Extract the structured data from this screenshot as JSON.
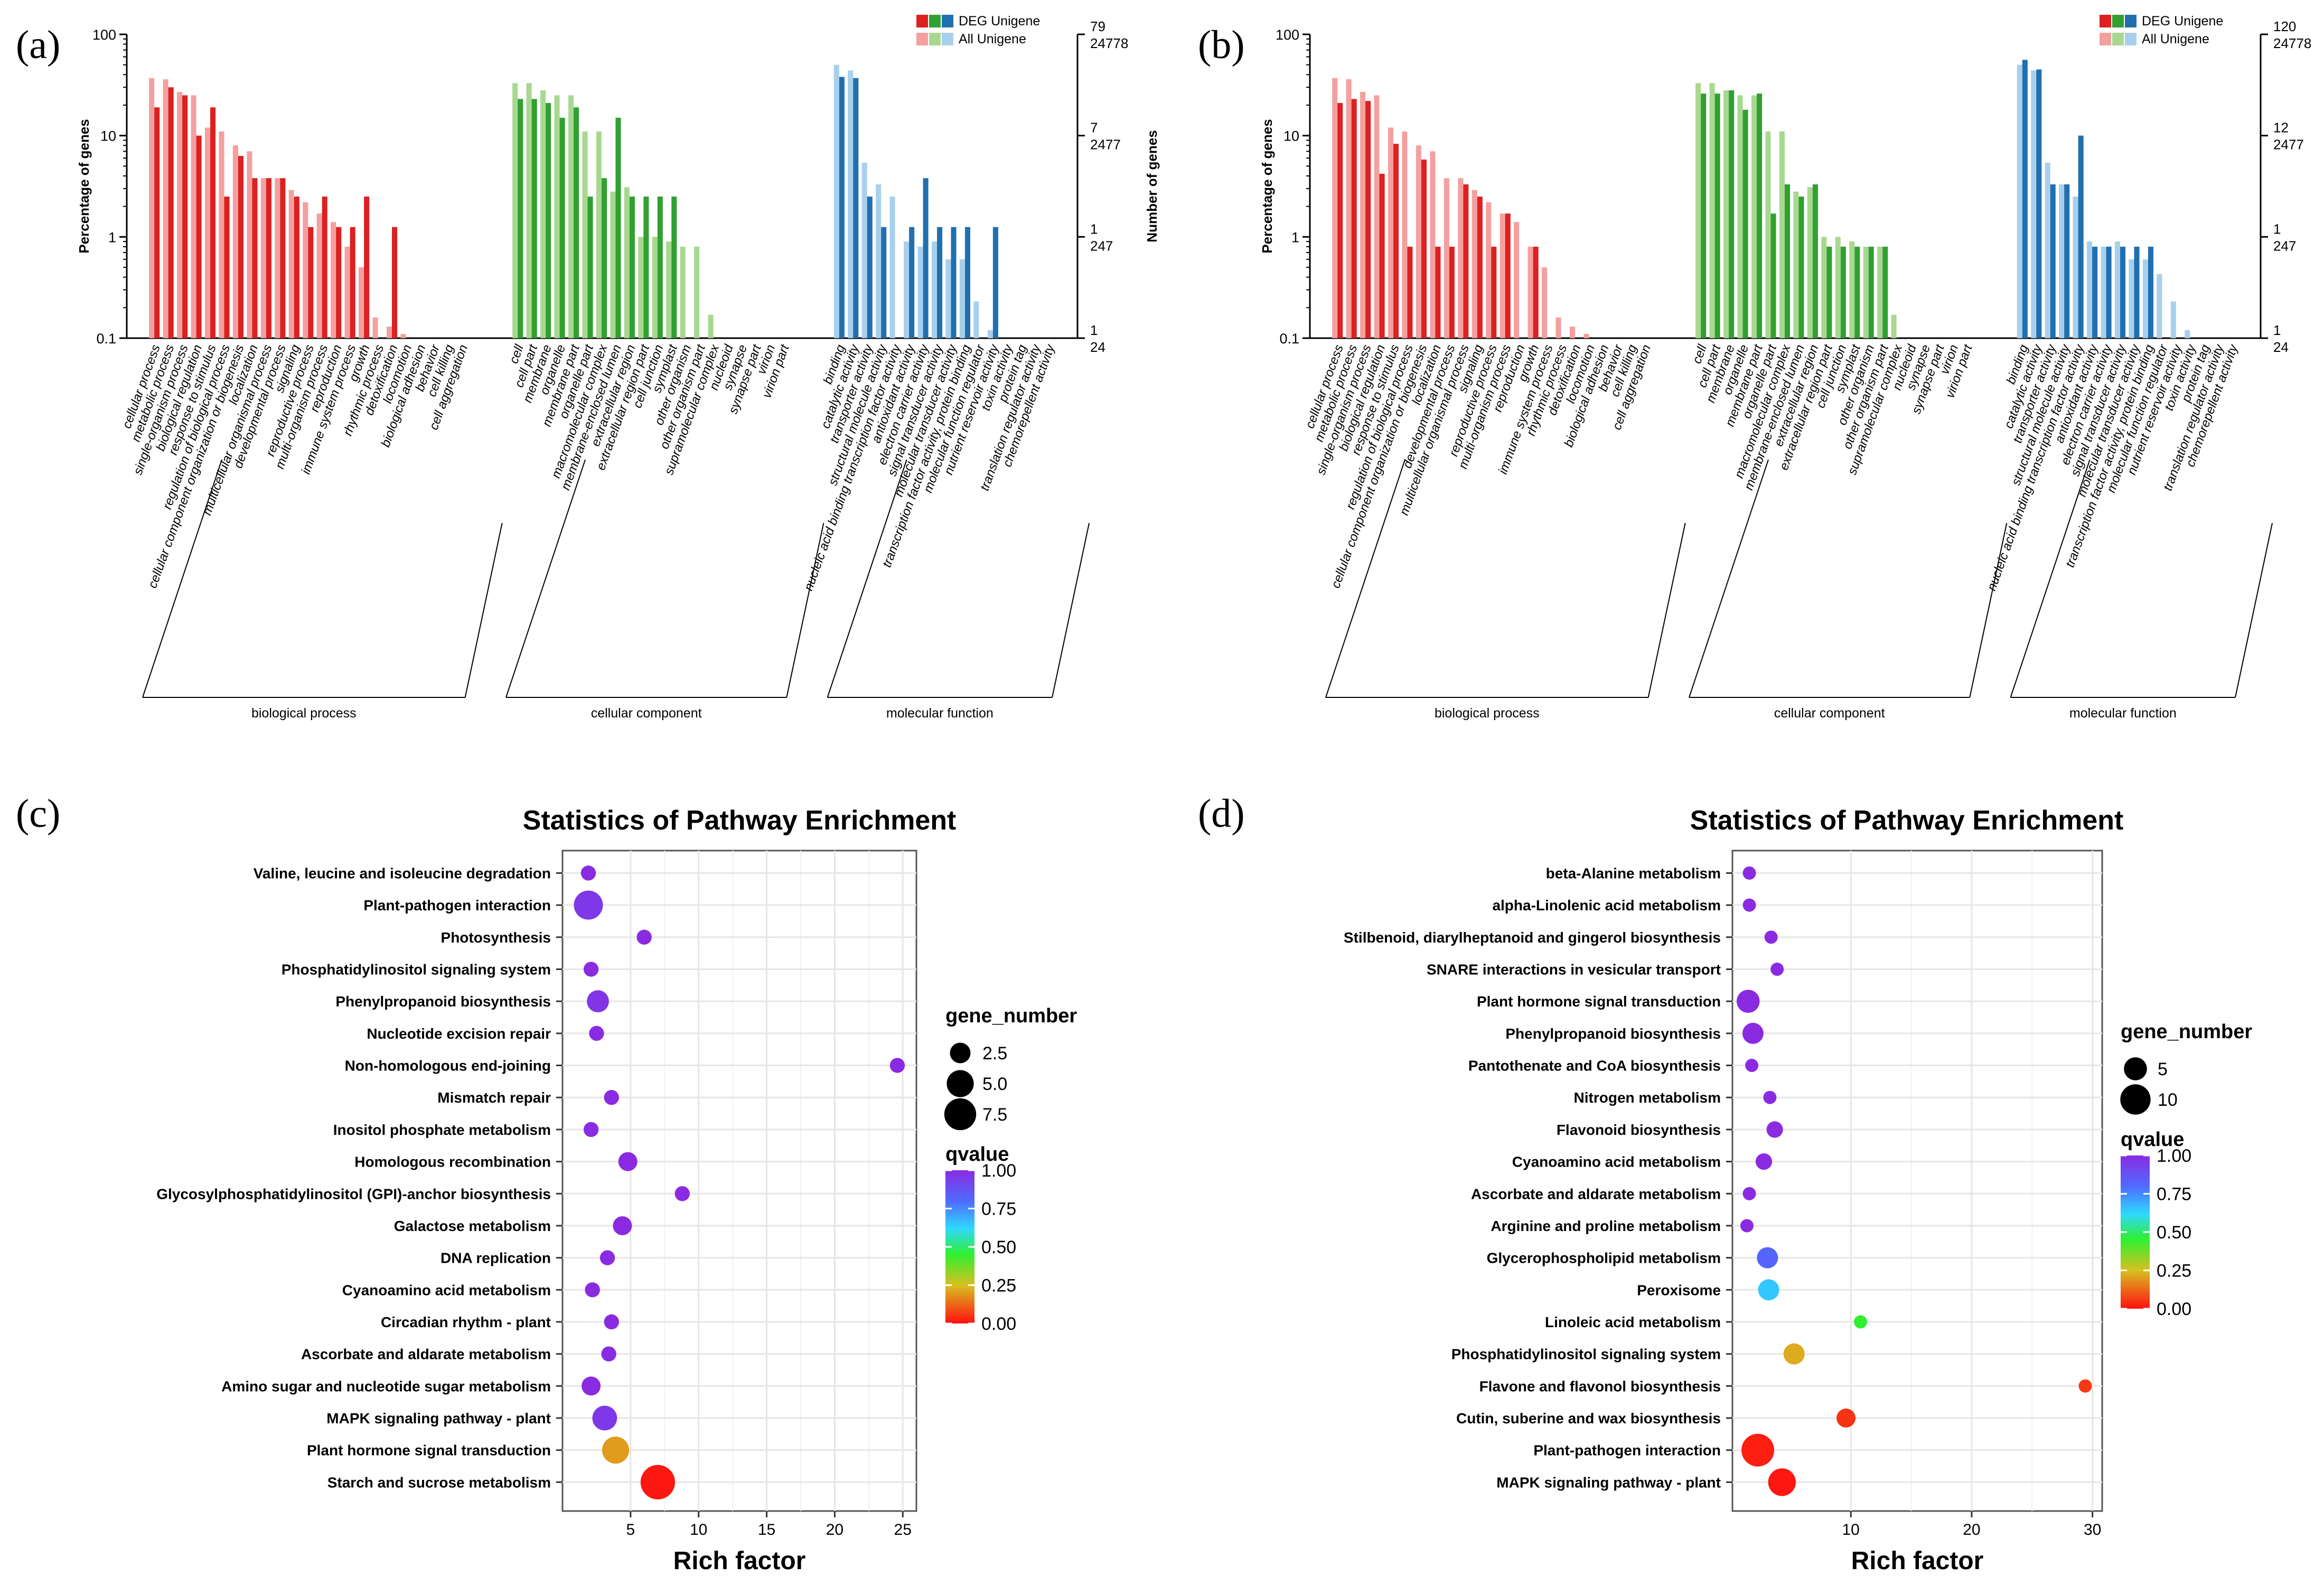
{
  "figure": {
    "panel_labels": [
      "(a)",
      "(b)",
      "(c)",
      "(d)"
    ]
  },
  "chart_data": [
    {
      "panel": "(a)",
      "type": "bar",
      "scale": "log",
      "ylabel_left": "Percentage of genes",
      "ylabel_right": "Number of genes",
      "yticks_left": [
        "100",
        "10",
        "1",
        "0.1"
      ],
      "yticks_right_top": [
        "79",
        "7",
        "1",
        "1"
      ],
      "yticks_right_bottom": [
        "24778",
        "2477",
        "247",
        "24"
      ],
      "ylim": [
        0.1,
        100
      ],
      "legend": [
        {
          "label": "DEG Unigene",
          "colors": [
            "#dd2020",
            "#30a030",
            "#2070b0"
          ]
        },
        {
          "label": "All Unigene",
          "colors": [
            "#f4a0a0",
            "#a8d890",
            "#a8d0ec"
          ]
        }
      ],
      "groups": [
        {
          "name": "biological process",
          "dark": "#dd2020",
          "light": "#f4a0a0",
          "categories": [
            "cellular process",
            "metabolic process",
            "single-organism process",
            "biological regulation",
            "response to stimulus",
            "regulation of biological process",
            "cellular component organization or biogenesis",
            "localization",
            "multicellular organismal process",
            "developmental process",
            "signaling",
            "reproductive process",
            "multi-organism process",
            "reproduction",
            "immune system process",
            "growth",
            "rhythmic process",
            "detoxification",
            "locomotion",
            "biological adhesion",
            "behavior",
            "cell killing",
            "cell aggregation"
          ],
          "all": [
            37,
            36,
            27,
            25,
            12,
            11,
            8,
            7,
            3.8,
            3.8,
            2.9,
            2.2,
            1.7,
            1.4,
            0.8,
            0.5,
            0.16,
            0.13,
            0.11,
            0.09,
            0.04,
            0.03,
            0.02
          ],
          "deg": [
            19,
            30,
            25,
            10,
            19,
            2.5,
            6.3,
            3.8,
            3.8,
            3.8,
            2.5,
            1.25,
            2.5,
            1.25,
            1.25,
            2.5,
            0,
            1.25,
            0,
            0,
            0,
            0,
            0
          ]
        },
        {
          "name": "cellular component",
          "dark": "#30a030",
          "light": "#a8d890",
          "categories": [
            "cell",
            "cell part",
            "membrane",
            "organelle",
            "membrane part",
            "organelle part",
            "macromolecular complex",
            "membrane-enclosed lumen",
            "extracellular region",
            "extracellular region part",
            "cell junction",
            "symplast",
            "other organism",
            "other organism part",
            "supramolecular complex",
            "nucleoid",
            "synapse",
            "synapse part",
            "virion",
            "virion part"
          ],
          "all": [
            33,
            33,
            28,
            25,
            25,
            11,
            11,
            2.8,
            3.1,
            1,
            1,
            0.9,
            0.8,
            0.8,
            0.17,
            0.07,
            0.05,
            0.04,
            0.03,
            0.03
          ],
          "deg": [
            23,
            23,
            21,
            15,
            19,
            2.5,
            3.8,
            15,
            2.5,
            2.5,
            2.5,
            2.5,
            0,
            0,
            0,
            0,
            0,
            0,
            0,
            0
          ]
        },
        {
          "name": "molecular function",
          "dark": "#2070b0",
          "light": "#a8d0ec",
          "categories": [
            "binding",
            "catalytic activity",
            "transporter activity",
            "structural molecule activity",
            "nucleic acid binding transcription factor activity",
            "antioxidant activity",
            "electron carrier activity",
            "signal transducer activity",
            "molecular transducer activity",
            "transcription factor activity, protein binding",
            "molecular function regulator",
            "nutrient reservoir activity",
            "toxin activity",
            "protein tag",
            "translation regulator activity",
            "chemorepellent activity"
          ],
          "all": [
            50,
            44,
            5.4,
            3.3,
            2.5,
            0.9,
            0.8,
            0.9,
            0.6,
            0.6,
            0.23,
            0.12,
            0.05,
            0.04,
            0.03,
            0.02
          ],
          "deg": [
            38,
            37,
            2.5,
            1.25,
            0,
            1.25,
            3.8,
            1.25,
            1.25,
            1.25,
            0,
            1.25,
            0,
            0,
            0,
            0
          ]
        }
      ]
    },
    {
      "panel": "(b)",
      "type": "bar",
      "scale": "log",
      "ylabel_left": "Percentage of genes",
      "ylabel_right": "Number of genes",
      "yticks_left": [
        "100",
        "10",
        "1",
        "0.1"
      ],
      "yticks_right_top": [
        "120",
        "12",
        "1",
        "1"
      ],
      "yticks_right_bottom": [
        "24778",
        "2477",
        "247",
        "24"
      ],
      "ylim": [
        0.1,
        100
      ],
      "legend": [
        {
          "label": "DEG Unigene",
          "colors": [
            "#dd2020",
            "#30a030",
            "#2070b0"
          ]
        },
        {
          "label": "All Unigene",
          "colors": [
            "#f4a0a0",
            "#a8d890",
            "#a8d0ec"
          ]
        }
      ],
      "groups": [
        {
          "name": "biological process",
          "dark": "#dd2020",
          "light": "#f4a0a0",
          "categories": [
            "cellular process",
            "metabolic process",
            "single-organism process",
            "biological regulation",
            "response to stimulus",
            "regulation of biological process",
            "cellular component organization or biogenesis",
            "localization",
            "developmental process",
            "multicellular organismal process",
            "signaling",
            "reproductive process",
            "multi-organism process",
            "reproduction",
            "growth",
            "immune system process",
            "rhythmic process",
            "detoxification",
            "locomotion",
            "biological adhesion",
            "behavior",
            "cell killing",
            "cell aggregation"
          ],
          "all": [
            37,
            36,
            27,
            25,
            12,
            11,
            8,
            7,
            3.8,
            3.8,
            2.9,
            2.2,
            1.7,
            1.4,
            0.8,
            0.5,
            0.16,
            0.13,
            0.11,
            0.09,
            0.04,
            0.03,
            0.02
          ],
          "deg": [
            21,
            23,
            22,
            4.2,
            8.3,
            0.8,
            5.8,
            0.8,
            0.8,
            3.3,
            2.5,
            0.8,
            1.7,
            0,
            0.8,
            0,
            0,
            0,
            0,
            0,
            0,
            0,
            0
          ]
        },
        {
          "name": "cellular component",
          "dark": "#30a030",
          "light": "#a8d890",
          "categories": [
            "cell",
            "cell part",
            "membrane",
            "organelle",
            "membrane part",
            "organelle part",
            "macromolecular complex",
            "membrane-enclosed lumen",
            "extracellular region",
            "extracellular region part",
            "cell junction",
            "symplast",
            "other organism",
            "other organism part",
            "supramolecular complex",
            "nucleoid",
            "synapse",
            "synapse part",
            "virion",
            "virion part"
          ],
          "all": [
            33,
            33,
            28,
            25,
            25,
            11,
            11,
            2.8,
            3.1,
            1,
            1,
            0.9,
            0.8,
            0.8,
            0.17,
            0.07,
            0.05,
            0.04,
            0.03,
            0.03
          ],
          "deg": [
            26,
            26,
            28,
            18,
            26,
            1.7,
            3.3,
            2.5,
            3.3,
            0.8,
            0.8,
            0.8,
            0.8,
            0.8,
            0,
            0,
            0,
            0,
            0,
            0
          ]
        },
        {
          "name": "molecular function",
          "dark": "#2070b0",
          "light": "#a8d0ec",
          "categories": [
            "binding",
            "catalytic activity",
            "transporter activity",
            "structural molecule activity",
            "nucleic acid binding transcription factor activity",
            "antioxidant activity",
            "electron carrier activity",
            "signal transducer activity",
            "molecular transducer activity",
            "transcription factor activity, protein binding",
            "molecular function regulator",
            "nutrient reservoir activity",
            "toxin activity",
            "protein tag",
            "translation regulator activity",
            "chemorepellent activity"
          ],
          "all": [
            50,
            44,
            5.4,
            3.3,
            2.5,
            0.9,
            0.8,
            0.9,
            0.6,
            0.6,
            0.43,
            0.23,
            0.12,
            0.05,
            0.04,
            0.02
          ],
          "deg": [
            56,
            45,
            3.3,
            3.3,
            10,
            0.8,
            0.8,
            0.8,
            0.8,
            0.8,
            0,
            0,
            0,
            0,
            0,
            0
          ]
        }
      ]
    },
    {
      "panel": "(c)",
      "type": "scatter",
      "title": "Statistics of Pathway Enrichment",
      "xlabel": "Rich factor",
      "xlim": [
        0,
        26
      ],
      "xticks": [
        5,
        10,
        15,
        20,
        25
      ],
      "legend_size_title": "gene_number",
      "legend_sizes": [
        {
          "label": "2.5",
          "value": 2.5
        },
        {
          "label": "5.0",
          "value": 5.0
        },
        {
          "label": "7.5",
          "value": 7.5
        }
      ],
      "size_max": 8,
      "legend_color_title": "qvalue",
      "color_ticks": [
        "1.00",
        "0.75",
        "0.50",
        "0.25",
        "0.00"
      ],
      "pathways": [
        {
          "name": "Valine, leucine and isoleucine degradation",
          "x": 1.9,
          "gene_number": 1,
          "qvalue": 1.0
        },
        {
          "name": "Plant-pathogen interaction",
          "x": 1.9,
          "gene_number": 6,
          "qvalue": 0.96
        },
        {
          "name": "Photosynthesis",
          "x": 6.0,
          "gene_number": 1,
          "qvalue": 1.0
        },
        {
          "name": "Phosphatidylinositol signaling system",
          "x": 2.1,
          "gene_number": 1,
          "qvalue": 1.0
        },
        {
          "name": "Phenylpropanoid biosynthesis",
          "x": 2.6,
          "gene_number": 3,
          "qvalue": 0.97
        },
        {
          "name": "Nucleotide excision repair",
          "x": 2.5,
          "gene_number": 1,
          "qvalue": 1.0
        },
        {
          "name": "Non-homologous end-joining",
          "x": 24.6,
          "gene_number": 1,
          "qvalue": 1.0
        },
        {
          "name": "Mismatch repair",
          "x": 3.6,
          "gene_number": 1,
          "qvalue": 1.0
        },
        {
          "name": "Inositol phosphate metabolism",
          "x": 2.1,
          "gene_number": 1,
          "qvalue": 1.0
        },
        {
          "name": "Homologous recombination",
          "x": 4.8,
          "gene_number": 2,
          "qvalue": 1.0
        },
        {
          "name": "Glycosylphosphatidylinositol (GPI)-anchor biosynthesis",
          "x": 8.8,
          "gene_number": 1,
          "qvalue": 1.0
        },
        {
          "name": "Galactose metabolism",
          "x": 4.4,
          "gene_number": 2,
          "qvalue": 1.0
        },
        {
          "name": "DNA replication",
          "x": 3.3,
          "gene_number": 1,
          "qvalue": 1.0
        },
        {
          "name": "Cyanoamino acid metabolism",
          "x": 2.2,
          "gene_number": 1,
          "qvalue": 1.0
        },
        {
          "name": "Circadian rhythm - plant",
          "x": 3.6,
          "gene_number": 1,
          "qvalue": 1.0
        },
        {
          "name": "Ascorbate and aldarate metabolism",
          "x": 3.4,
          "gene_number": 1,
          "qvalue": 1.0
        },
        {
          "name": "Amino sugar and nucleotide sugar metabolism",
          "x": 2.1,
          "gene_number": 2,
          "qvalue": 1.0
        },
        {
          "name": "MAPK signaling pathway - plant",
          "x": 3.1,
          "gene_number": 4,
          "qvalue": 0.96
        },
        {
          "name": "Plant hormone signal transduction",
          "x": 3.9,
          "gene_number": 5,
          "qvalue": 0.2
        },
        {
          "name": "Starch and sucrose metabolism",
          "x": 7.0,
          "gene_number": 9,
          "qvalue": 0.01
        }
      ]
    },
    {
      "panel": "(d)",
      "type": "scatter",
      "title": "Statistics of Pathway Enrichment",
      "xlabel": "Rich factor",
      "xlim": [
        0.2,
        30.8
      ],
      "xticks": [
        10,
        20,
        30
      ],
      "legend_size_title": "gene_number",
      "legend_sizes": [
        {
          "label": "5",
          "value": 5
        },
        {
          "label": "10",
          "value": 10
        }
      ],
      "size_max": 12,
      "legend_color_title": "qvalue",
      "color_ticks": [
        "1.00",
        "0.75",
        "0.50",
        "0.25",
        "0.00"
      ],
      "pathways": [
        {
          "name": "beta-Alanine metabolism",
          "x": 1.6,
          "gene_number": 1,
          "qvalue": 1.0
        },
        {
          "name": "alpha-Linolenic acid metabolism",
          "x": 1.6,
          "gene_number": 1,
          "qvalue": 1.0
        },
        {
          "name": "Stilbenoid, diarylheptanoid and gingerol biosynthesis",
          "x": 3.4,
          "gene_number": 1,
          "qvalue": 1.0
        },
        {
          "name": "SNARE interactions in vesicular transport",
          "x": 3.9,
          "gene_number": 1,
          "qvalue": 1.0
        },
        {
          "name": "Plant hormone signal transduction",
          "x": 1.5,
          "gene_number": 5,
          "qvalue": 1.0
        },
        {
          "name": "Phenylpropanoid biosynthesis",
          "x": 1.9,
          "gene_number": 4,
          "qvalue": 1.0
        },
        {
          "name": "Pantothenate and CoA biosynthesis",
          "x": 1.8,
          "gene_number": 1,
          "qvalue": 1.0
        },
        {
          "name": "Nitrogen metabolism",
          "x": 3.3,
          "gene_number": 1,
          "qvalue": 1.0
        },
        {
          "name": "Flavonoid biosynthesis",
          "x": 3.7,
          "gene_number": 2,
          "qvalue": 1.0
        },
        {
          "name": "Cyanoamino acid metabolism",
          "x": 2.8,
          "gene_number": 2,
          "qvalue": 1.0
        },
        {
          "name": "Ascorbate and aldarate metabolism",
          "x": 1.6,
          "gene_number": 1,
          "qvalue": 1.0
        },
        {
          "name": "Arginine and proline metabolism",
          "x": 1.4,
          "gene_number": 1,
          "qvalue": 1.0
        },
        {
          "name": "Glycerophospholipid metabolism",
          "x": 3.1,
          "gene_number": 4,
          "qvalue": 0.82
        },
        {
          "name": "Peroxisome",
          "x": 3.2,
          "gene_number": 4,
          "qvalue": 0.65
        },
        {
          "name": "Linoleic acid metabolism",
          "x": 10.8,
          "gene_number": 1,
          "qvalue": 0.45
        },
        {
          "name": "Phosphatidylinositol signaling system",
          "x": 5.3,
          "gene_number": 4,
          "qvalue": 0.22
        },
        {
          "name": "Flavone and flavonol biosynthesis",
          "x": 29.4,
          "gene_number": 1,
          "qvalue": 0.06
        },
        {
          "name": "Cutin, suberine and wax biosynthesis",
          "x": 9.6,
          "gene_number": 3,
          "qvalue": 0.05
        },
        {
          "name": "Plant-pathogen interaction",
          "x": 2.3,
          "gene_number": 12,
          "qvalue": 0.02
        },
        {
          "name": "MAPK signaling pathway - plant",
          "x": 4.3,
          "gene_number": 8,
          "qvalue": 0.01
        }
      ]
    }
  ]
}
